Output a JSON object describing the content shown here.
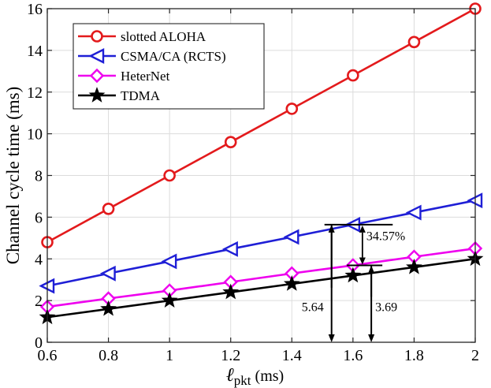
{
  "chart_data": {
    "type": "line",
    "x": [
      0.6,
      0.8,
      1.0,
      1.2,
      1.4,
      1.6,
      1.8,
      2.0
    ],
    "series": [
      {
        "name": "slotted ALOHA",
        "color": "#e31a1c",
        "marker": "circle",
        "values": [
          4.8,
          6.4,
          8.0,
          9.6,
          11.2,
          12.8,
          14.4,
          16.0
        ]
      },
      {
        "name": "CSMA/CA (RCTS)",
        "color": "#1f1fd6",
        "marker": "triangle-left",
        "values": [
          2.7,
          3.3,
          3.88,
          4.47,
          5.05,
          5.64,
          6.22,
          6.8
        ]
      },
      {
        "name": "HeterNet",
        "color": "#ee00ee",
        "marker": "diamond",
        "values": [
          1.7,
          2.1,
          2.48,
          2.89,
          3.3,
          3.69,
          4.1,
          4.5
        ]
      },
      {
        "name": "TDMA",
        "color": "#000000",
        "marker": "star",
        "values": [
          1.2,
          1.6,
          2.0,
          2.4,
          2.8,
          3.2,
          3.6,
          4.0
        ]
      }
    ],
    "xlim": [
      0.6,
      2.0
    ],
    "ylim": [
      0,
      16
    ],
    "xticks": [
      0.6,
      0.8,
      1.0,
      1.2,
      1.4,
      1.6,
      1.8,
      2.0
    ],
    "xtick_labels": [
      "0.6",
      "0.8",
      "1",
      "1.2",
      "1.4",
      "1.6",
      "1.8",
      "2"
    ],
    "yticks": [
      0,
      2,
      4,
      6,
      8,
      10,
      12,
      14,
      16
    ],
    "ytick_labels": [
      "0",
      "2",
      "4",
      "6",
      "8",
      "10",
      "12",
      "14",
      "16"
    ],
    "ylabel": "Channel cycle time (ms)",
    "xlabel": {
      "symbol": "ℓ",
      "subscript": "pkt",
      "unit": " (ms)"
    },
    "grid": true,
    "legend_position": "top-left",
    "annotations": {
      "csma_value": {
        "x": 1.53,
        "value": 5.64,
        "label": "5.64"
      },
      "heternet_value": {
        "x": 1.66,
        "value": 3.69,
        "label": "3.69"
      },
      "gap": {
        "x": 1.6,
        "upper": 5.64,
        "lower": 3.69,
        "label": "34.57%"
      }
    }
  }
}
